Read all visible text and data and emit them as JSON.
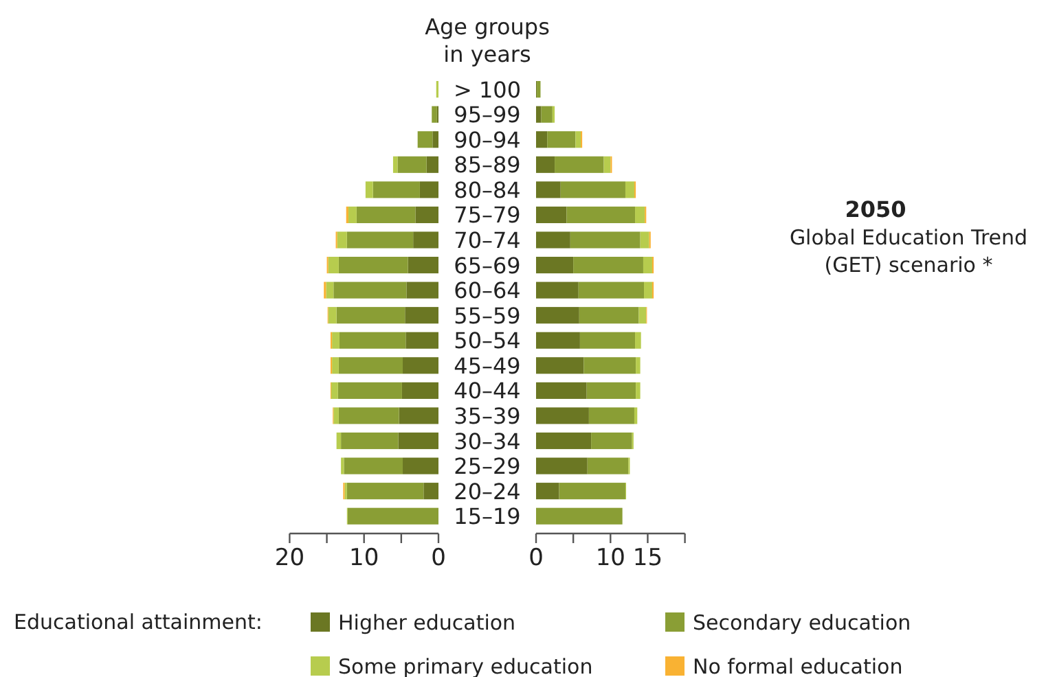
{
  "chart_data": [
    {
      "type": "bar",
      "orientation": "horizontal",
      "stacked": true,
      "ylabel": "Age groups in years",
      "legend": "bottom",
      "legend_title": "Educational attainment:",
      "categories": [
        "> 100",
        "95–99",
        "90–94",
        "85–89",
        "80–84",
        "75–79",
        "70–74",
        "65–69",
        "60–64",
        "55–59",
        "50–54",
        "45–49",
        "40–44",
        "35–39",
        "30–34",
        "25–29",
        "20–24",
        "15–19"
      ],
      "xlim": [
        20,
        0
      ],
      "xticks": [
        20,
        {
          "value": 15,
          "label": null
        },
        10,
        {
          "value": 5,
          "label": null
        },
        0
      ],
      "series": [
        {
          "name": "Higher education",
          "color": "#6b7723",
          "values": [
            0,
            0.2,
            0.8,
            1.6,
            2.5,
            3.1,
            3.4,
            4.1,
            4.3,
            4.5,
            4.4,
            4.8,
            4.9,
            5.3,
            5.4,
            4.8,
            2.0,
            0
          ]
        },
        {
          "name": "Secondary education",
          "color": "#8a9e35",
          "values": [
            0,
            0.7,
            2.0,
            3.9,
            6.3,
            7.9,
            8.9,
            9.3,
            9.8,
            9.2,
            8.9,
            8.6,
            8.6,
            8.1,
            7.7,
            7.9,
            10.3,
            12.2
          ]
        },
        {
          "name": "Some primary education",
          "color": "#b7cc4e",
          "values": [
            0.3,
            0,
            0,
            0.6,
            1.0,
            1.1,
            1.3,
            1.4,
            1.0,
            1.1,
            1.0,
            0.9,
            0.9,
            0.7,
            0.6,
            0.4,
            0.3,
            0.1
          ]
        },
        {
          "name": "No formal education",
          "color": "#f9b233",
          "values": [
            0,
            0,
            0,
            0,
            0,
            0.3,
            0.2,
            0.2,
            0.3,
            0.1,
            0.2,
            0.2,
            0.1,
            0.1,
            0,
            0,
            0.2,
            0
          ]
        }
      ]
    },
    {
      "type": "bar",
      "orientation": "horizontal",
      "stacked": true,
      "annotations": [
        "2050",
        "Global Education Trend (GET) scenario *"
      ],
      "categories": [
        null,
        null,
        null,
        null,
        null,
        null,
        null,
        null,
        null,
        null,
        null,
        null,
        null,
        null,
        null,
        null,
        null,
        null
      ],
      "xlim": [
        0,
        20
      ],
      "xticks": [
        0,
        {
          "value": 5,
          "label": null
        },
        10,
        15,
        {
          "value": 20,
          "label": null
        }
      ],
      "series": [
        {
          "color": "#6b7723",
          "values": [
            0.1,
            0.7,
            1.5,
            2.5,
            3.3,
            4.1,
            4.6,
            5.0,
            5.7,
            5.8,
            5.9,
            6.4,
            6.8,
            7.1,
            7.4,
            6.9,
            3.1,
            0
          ]
        },
        {
          "color": "#8a9e35",
          "values": [
            0.5,
            1.5,
            3.8,
            6.6,
            8.7,
            9.2,
            9.4,
            9.4,
            8.8,
            8.0,
            7.4,
            7.0,
            6.6,
            6.1,
            5.5,
            5.5,
            8.9,
            11.6
          ]
        },
        {
          "color": "#b7cc4e",
          "values": [
            0,
            0.3,
            0.7,
            0.9,
            1.2,
            1.3,
            1.2,
            1.2,
            1.1,
            1.0,
            0.8,
            0.6,
            0.6,
            0.4,
            0.2,
            0.2,
            0.1,
            0
          ]
        },
        {
          "color": "#f9b233",
          "values": [
            0,
            0,
            0.2,
            0.2,
            0.2,
            0.2,
            0.2,
            0.2,
            0.2,
            0.1,
            0,
            0,
            0,
            0,
            0,
            0,
            0,
            0
          ]
        }
      ]
    }
  ]
}
